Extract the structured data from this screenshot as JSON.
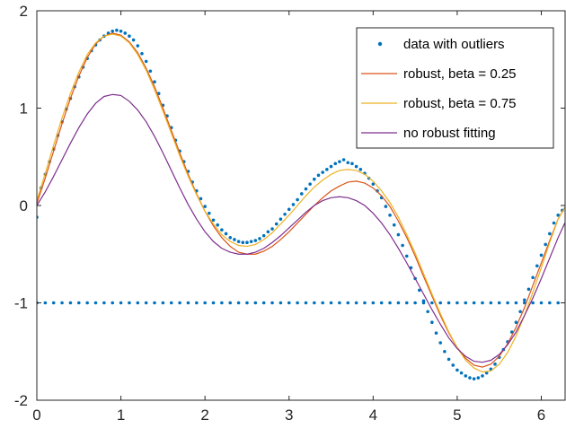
{
  "chart_data": {
    "type": "line",
    "title": "",
    "xlabel": "",
    "ylabel": "",
    "xlim": [
      0,
      6.2832
    ],
    "ylim": [
      -2,
      2
    ],
    "x_ticks": [
      0,
      1,
      2,
      3,
      4,
      5,
      6
    ],
    "y_ticks": [
      -2,
      -1,
      0,
      1,
      2
    ],
    "x_tick_labels": [
      "0",
      "1",
      "2",
      "3",
      "4",
      "5",
      "6"
    ],
    "y_tick_labels": [
      "-2",
      "-1",
      "0",
      "1",
      "2"
    ],
    "legend_position": "top-right",
    "grid": false,
    "series": [
      {
        "name": "data with outliers",
        "kind": "scatter",
        "color": "#0072BD",
        "x": [
          0.0,
          0.05,
          0.1,
          0.15,
          0.2,
          0.25,
          0.3,
          0.35,
          0.4,
          0.45,
          0.5,
          0.55,
          0.6,
          0.65,
          0.7,
          0.75,
          0.8,
          0.85,
          0.9,
          0.95,
          1.0,
          1.05,
          1.1,
          1.15,
          1.2,
          1.25,
          1.3,
          1.35,
          1.4,
          1.45,
          1.5,
          1.55,
          1.6,
          1.65,
          1.7,
          1.75,
          1.8,
          1.85,
          1.9,
          1.95,
          2.0,
          2.05,
          2.1,
          2.15,
          2.2,
          2.25,
          2.3,
          2.35,
          2.4,
          2.45,
          2.5,
          2.55,
          2.6,
          2.65,
          2.7,
          2.75,
          2.8,
          2.85,
          2.9,
          2.95,
          3.0,
          3.05,
          3.1,
          3.15,
          3.2,
          3.25,
          3.3,
          3.35,
          3.4,
          3.45,
          3.5,
          3.55,
          3.6,
          3.65,
          3.7,
          3.75,
          3.8,
          3.85,
          3.9,
          3.95,
          4.0,
          4.05,
          4.1,
          4.15,
          4.2,
          4.25,
          4.3,
          4.35,
          4.4,
          4.45,
          4.5,
          4.55,
          4.6,
          4.65,
          4.7,
          4.75,
          4.8,
          4.85,
          4.9,
          4.95,
          5.0,
          5.05,
          5.1,
          5.15,
          5.2,
          5.25,
          5.3,
          5.35,
          5.4,
          5.45,
          5.5,
          5.55,
          5.6,
          5.65,
          5.7,
          5.75,
          5.8,
          5.85,
          5.9,
          5.95,
          6.0,
          6.05,
          6.1,
          6.15,
          6.2,
          6.25
        ],
        "y": [
          -0.12,
          0.18,
          0.32,
          0.45,
          0.58,
          0.72,
          0.86,
          0.99,
          1.1,
          1.22,
          1.32,
          1.42,
          1.51,
          1.59,
          1.65,
          1.7,
          1.74,
          1.77,
          1.79,
          1.8,
          1.79,
          1.77,
          1.74,
          1.7,
          1.64,
          1.56,
          1.48,
          1.38,
          1.27,
          1.15,
          1.03,
          0.92,
          0.8,
          0.67,
          0.56,
          0.45,
          0.35,
          0.24,
          0.15,
          0.07,
          -0.01,
          -0.08,
          -0.15,
          -0.2,
          -0.25,
          -0.29,
          -0.33,
          -0.35,
          -0.37,
          -0.38,
          -0.38,
          -0.37,
          -0.36,
          -0.34,
          -0.31,
          -0.27,
          -0.24,
          -0.19,
          -0.14,
          -0.09,
          -0.04,
          0.01,
          0.06,
          0.12,
          0.17,
          0.22,
          0.27,
          0.31,
          0.34,
          0.37,
          0.4,
          0.43,
          0.45,
          0.47,
          0.44,
          0.43,
          0.4,
          0.37,
          0.33,
          0.28,
          0.22,
          0.15,
          0.08,
          -0.01,
          -0.1,
          -0.2,
          -0.3,
          -0.41,
          -0.52,
          -0.64,
          -0.75,
          -0.87,
          -0.98,
          -1.09,
          -1.2,
          -1.31,
          -1.41,
          -1.5,
          -1.58,
          -1.64,
          -1.69,
          -1.72,
          -1.75,
          -1.77,
          -1.78,
          -1.77,
          -1.75,
          -1.72,
          -1.68,
          -1.63,
          -1.56,
          -1.48,
          -1.4,
          -1.3,
          -1.2,
          -1.09,
          -0.97,
          -0.86,
          -0.74,
          -0.62,
          -0.51,
          -0.4,
          -0.29,
          -0.18,
          -0.1,
          -0.05
        ]
      },
      {
        "name": "data with outliers",
        "kind": "scatter-outliers",
        "color": "#0072BD",
        "x": [
          0.0,
          0.1,
          0.2,
          0.3,
          0.4,
          0.5,
          0.6,
          0.7,
          0.8,
          0.9,
          1.0,
          1.1,
          1.2,
          1.3,
          1.4,
          1.5,
          1.6,
          1.7,
          1.8,
          1.9,
          2.0,
          2.1,
          2.2,
          2.3,
          2.4,
          2.5,
          2.6,
          2.7,
          2.8,
          2.9,
          3.0,
          3.1,
          3.2,
          3.3,
          3.4,
          3.5,
          3.6,
          3.7,
          3.8,
          3.9,
          4.0,
          4.1,
          4.2,
          4.3,
          4.4,
          4.5,
          4.6,
          4.7,
          4.8,
          4.9,
          5.0,
          5.1,
          5.2,
          5.3,
          5.4,
          5.5,
          5.6,
          5.7,
          5.8,
          5.9,
          6.0,
          6.1,
          6.2
        ],
        "y": [
          -1,
          -1,
          -1,
          -1,
          -1,
          -1,
          -1,
          -1,
          -1,
          -1,
          -1,
          -1,
          -1,
          -1,
          -1,
          -1,
          -1,
          -1,
          -1,
          -1,
          -1,
          -1,
          -1,
          -1,
          -1,
          -1,
          -1,
          -1,
          -1,
          -1,
          -1,
          -1,
          -1,
          -1,
          -1,
          -1,
          -1,
          -1,
          -1,
          -1,
          -1,
          -1,
          -1,
          -1,
          -1,
          -1,
          -1,
          -1,
          -1,
          -1,
          -1,
          -1,
          -1,
          -1,
          -1,
          -1,
          -1,
          -1,
          -1,
          -1,
          -1,
          -1,
          -1
        ]
      },
      {
        "name": "robust, beta = 0.25",
        "kind": "line",
        "color": "#D95319",
        "x": [
          0.0,
          0.1,
          0.2,
          0.3,
          0.4,
          0.5,
          0.6,
          0.7,
          0.8,
          0.9,
          1.0,
          1.1,
          1.2,
          1.3,
          1.4,
          1.5,
          1.6,
          1.7,
          1.8,
          1.9,
          2.0,
          2.1,
          2.2,
          2.3,
          2.4,
          2.5,
          2.6,
          2.7,
          2.8,
          2.9,
          3.0,
          3.1,
          3.2,
          3.3,
          3.4,
          3.5,
          3.6,
          3.7,
          3.8,
          3.9,
          4.0,
          4.1,
          4.2,
          4.3,
          4.4,
          4.5,
          4.6,
          4.7,
          4.8,
          4.9,
          5.0,
          5.1,
          5.2,
          5.3,
          5.4,
          5.5,
          5.6,
          5.7,
          5.8,
          5.9,
          6.0,
          6.1,
          6.2,
          6.28
        ],
        "y": [
          0.02,
          0.28,
          0.56,
          0.84,
          1.1,
          1.33,
          1.52,
          1.66,
          1.74,
          1.77,
          1.75,
          1.68,
          1.57,
          1.41,
          1.22,
          1.0,
          0.77,
          0.54,
          0.32,
          0.12,
          -0.06,
          -0.21,
          -0.33,
          -0.42,
          -0.48,
          -0.5,
          -0.5,
          -0.47,
          -0.42,
          -0.35,
          -0.27,
          -0.18,
          -0.09,
          0.0,
          0.08,
          0.15,
          0.2,
          0.24,
          0.25,
          0.23,
          0.18,
          0.1,
          -0.01,
          -0.16,
          -0.33,
          -0.52,
          -0.73,
          -0.93,
          -1.13,
          -1.31,
          -1.46,
          -1.57,
          -1.64,
          -1.66,
          -1.63,
          -1.55,
          -1.42,
          -1.25,
          -1.05,
          -0.82,
          -0.59,
          -0.36,
          -0.14,
          -0.02
        ]
      },
      {
        "name": "robust, beta = 0.75",
        "kind": "line",
        "color": "#EDB120",
        "x": [
          0.0,
          0.1,
          0.2,
          0.3,
          0.4,
          0.5,
          0.6,
          0.7,
          0.8,
          0.9,
          1.0,
          1.1,
          1.2,
          1.3,
          1.4,
          1.5,
          1.6,
          1.7,
          1.8,
          1.9,
          2.0,
          2.1,
          2.2,
          2.3,
          2.4,
          2.5,
          2.6,
          2.7,
          2.8,
          2.9,
          3.0,
          3.1,
          3.2,
          3.3,
          3.4,
          3.5,
          3.6,
          3.7,
          3.8,
          3.9,
          4.0,
          4.1,
          4.2,
          4.3,
          4.4,
          4.5,
          4.6,
          4.7,
          4.8,
          4.9,
          5.0,
          5.1,
          5.2,
          5.3,
          5.4,
          5.5,
          5.6,
          5.7,
          5.8,
          5.9,
          6.0,
          6.1,
          6.2,
          6.28
        ],
        "y": [
          0.05,
          0.33,
          0.62,
          0.9,
          1.15,
          1.37,
          1.55,
          1.67,
          1.74,
          1.76,
          1.74,
          1.67,
          1.55,
          1.39,
          1.19,
          0.97,
          0.74,
          0.51,
          0.3,
          0.11,
          -0.06,
          -0.19,
          -0.3,
          -0.37,
          -0.41,
          -0.42,
          -0.4,
          -0.35,
          -0.28,
          -0.19,
          -0.1,
          0.0,
          0.1,
          0.19,
          0.26,
          0.32,
          0.36,
          0.37,
          0.36,
          0.32,
          0.25,
          0.15,
          0.03,
          -0.12,
          -0.3,
          -0.49,
          -0.7,
          -0.91,
          -1.11,
          -1.3,
          -1.46,
          -1.59,
          -1.67,
          -1.71,
          -1.7,
          -1.63,
          -1.51,
          -1.34,
          -1.13,
          -0.89,
          -0.64,
          -0.38,
          -0.14,
          -0.02
        ]
      },
      {
        "name": "no robust fitting",
        "kind": "line",
        "color": "#7E2F8E",
        "x": [
          0.0,
          0.1,
          0.2,
          0.3,
          0.4,
          0.5,
          0.6,
          0.7,
          0.8,
          0.9,
          1.0,
          1.1,
          1.2,
          1.3,
          1.4,
          1.5,
          1.6,
          1.7,
          1.8,
          1.9,
          2.0,
          2.1,
          2.2,
          2.3,
          2.4,
          2.5,
          2.6,
          2.7,
          2.8,
          2.9,
          3.0,
          3.1,
          3.2,
          3.3,
          3.4,
          3.5,
          3.6,
          3.7,
          3.8,
          3.9,
          4.0,
          4.1,
          4.2,
          4.3,
          4.4,
          4.5,
          4.6,
          4.7,
          4.8,
          4.9,
          5.0,
          5.1,
          5.2,
          5.3,
          5.4,
          5.5,
          5.6,
          5.7,
          5.8,
          5.9,
          6.0,
          6.1,
          6.2,
          6.28
        ],
        "y": [
          0.0,
          0.14,
          0.3,
          0.47,
          0.64,
          0.8,
          0.94,
          1.05,
          1.12,
          1.14,
          1.13,
          1.07,
          0.98,
          0.86,
          0.71,
          0.54,
          0.36,
          0.18,
          0.01,
          -0.14,
          -0.27,
          -0.37,
          -0.44,
          -0.48,
          -0.5,
          -0.5,
          -0.48,
          -0.44,
          -0.38,
          -0.31,
          -0.23,
          -0.15,
          -0.07,
          0.0,
          0.05,
          0.08,
          0.09,
          0.08,
          0.05,
          0.0,
          -0.08,
          -0.18,
          -0.3,
          -0.44,
          -0.59,
          -0.75,
          -0.91,
          -1.07,
          -1.22,
          -1.36,
          -1.47,
          -1.55,
          -1.6,
          -1.61,
          -1.59,
          -1.53,
          -1.43,
          -1.3,
          -1.13,
          -0.95,
          -0.75,
          -0.54,
          -0.33,
          -0.18
        ]
      }
    ],
    "legend": [
      {
        "label": "data with outliers",
        "kind": "marker",
        "color": "#0072BD"
      },
      {
        "label": "robust, beta = 0.25",
        "kind": "line",
        "color": "#D95319"
      },
      {
        "label": "robust, beta = 0.75",
        "kind": "line",
        "color": "#EDB120"
      },
      {
        "label": "no robust fitting",
        "kind": "line",
        "color": "#7E2F8E"
      }
    ]
  }
}
